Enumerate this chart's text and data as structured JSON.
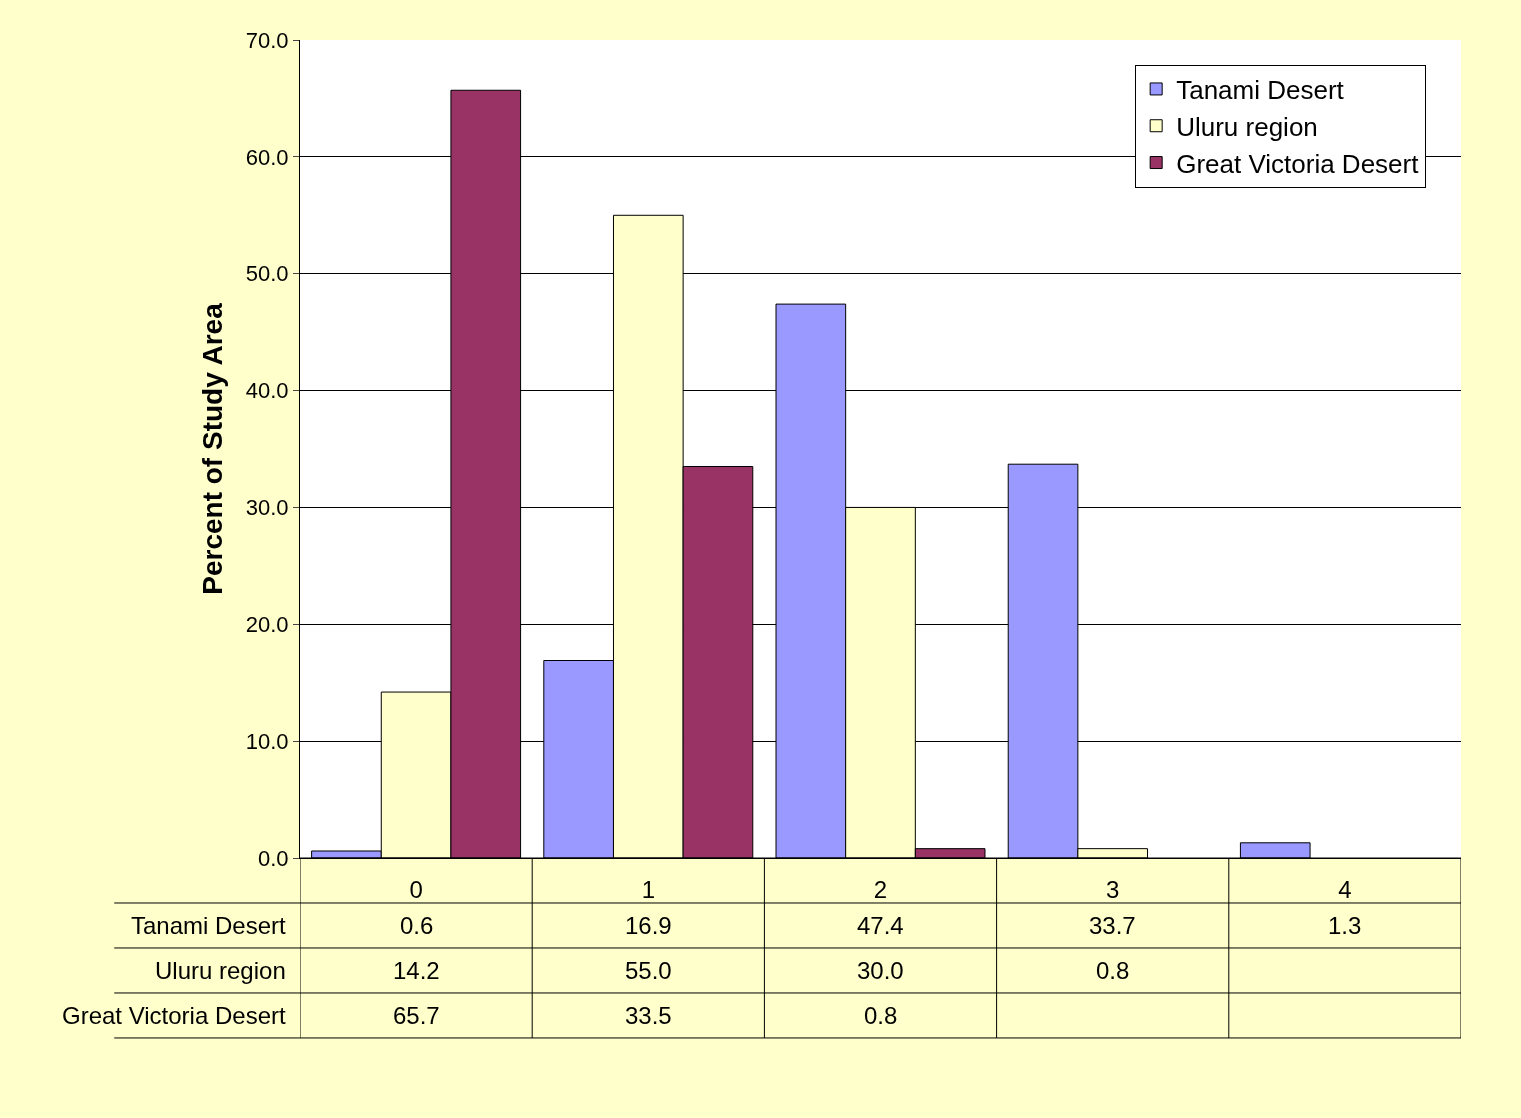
{
  "chart_data": {
    "type": "bar",
    "ylabel": "Percent of Study Area",
    "categories": [
      "0",
      "1",
      "2",
      "3",
      "4"
    ],
    "series": [
      {
        "name": "Tanami Desert",
        "color": "#9999ff",
        "values": [
          0.6,
          16.9,
          47.4,
          33.7,
          1.3
        ],
        "value_labels": [
          "0.6",
          "16.9",
          "47.4",
          "33.7",
          "1.3"
        ]
      },
      {
        "name": "Uluru region",
        "color": "#ffffcc",
        "values": [
          14.2,
          55.0,
          30.0,
          0.8,
          null
        ],
        "value_labels": [
          "14.2",
          "55.0",
          "30.0",
          "0.8",
          null
        ]
      },
      {
        "name": "Great Victoria Desert",
        "color": "#993366",
        "values": [
          65.7,
          33.5,
          0.8,
          null,
          null
        ],
        "value_labels": [
          "65.7",
          "33.5",
          "0.8",
          null,
          null
        ]
      }
    ],
    "ylim": [
      0,
      70
    ],
    "yticks": [
      {
        "value": 0,
        "label": "0.0"
      },
      {
        "value": 10,
        "label": "10.0"
      },
      {
        "value": 20,
        "label": "20.0"
      },
      {
        "value": 30,
        "label": "30.0"
      },
      {
        "value": 40,
        "label": "40.0"
      },
      {
        "value": 50,
        "label": "50.0"
      },
      {
        "value": 60,
        "label": "60.0"
      },
      {
        "value": 70,
        "label": "70.0"
      }
    ],
    "grid": "y",
    "legend": "top right"
  }
}
